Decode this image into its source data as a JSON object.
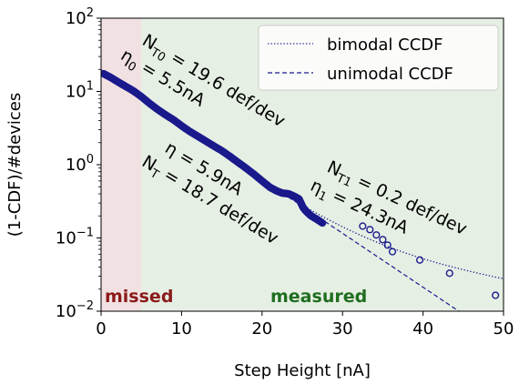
{
  "chart_data": {
    "type": "scatter",
    "xlabel": "Step Height  [nA]",
    "ylabel": "(1-CDF)/#devices",
    "xlim": [
      0,
      50
    ],
    "ylim": [
      0.01,
      100
    ],
    "yscale": "log",
    "x_ticks": [
      "0",
      "10",
      "20",
      "30",
      "40",
      "50"
    ],
    "y_ticks": [
      {
        "value": 100,
        "base": "10",
        "exp": "2"
      },
      {
        "value": 10,
        "base": "10",
        "exp": "1"
      },
      {
        "value": 1,
        "base": "10",
        "exp": "0"
      },
      {
        "value": 0.1,
        "base": "10",
        "exp": "−1"
      },
      {
        "value": 0.01,
        "base": "10",
        "exp": "−2"
      }
    ],
    "legend_position": "top-right",
    "legend": [
      {
        "label": "bimodal CCDF",
        "style": "dotted"
      },
      {
        "label": "unimodal CCDF",
        "style": "dashed"
      }
    ],
    "regions": [
      {
        "label": "missed",
        "x_range": [
          0,
          5
        ],
        "fill": "#f1e1e2",
        "text_color": "#8b1a1a"
      },
      {
        "label": "measured",
        "x_range": [
          5,
          50
        ],
        "fill": "#e6efe4",
        "text_color": "#1f6e1f"
      }
    ],
    "colors": {
      "data": "#1a1a8c",
      "bimodal": "#1a1a8c",
      "unimodal": "#1a1a8c"
    },
    "annotations": {
      "unimodal": {
        "n_base": "N",
        "n_sub": "T",
        "n_value": " = 18.7 def/dev",
        "eta_base": "η",
        "eta_value": " = 5.9nA"
      },
      "mode0": {
        "n_base": "N",
        "n_sub": "T0",
        "n_value": " = 19.6 def/dev",
        "eta_base": "η",
        "eta_sub": "0",
        "eta_value": " = 5.5nA"
      },
      "mode1": {
        "n_base": "N",
        "n_sub": "T1",
        "n_value": " = 0.2 def/dev",
        "eta_base": "η",
        "eta_sub": "1",
        "eta_value": " = 24.3nA"
      }
    },
    "model_params": {
      "unimodal": {
        "N": 18.7,
        "eta": 5.9
      },
      "bimodal": [
        {
          "N": 19.6,
          "eta": 5.5
        },
        {
          "N": 0.2,
          "eta": 24.3
        }
      ]
    },
    "scatter_points": [
      [
        0.3,
        17.5
      ],
      [
        1.2,
        15.5
      ],
      [
        2.1,
        13.5
      ],
      [
        3.0,
        11.8
      ],
      [
        4.0,
        10.2
      ],
      [
        5.0,
        8.5
      ],
      [
        6.0,
        6.9
      ],
      [
        7.0,
        5.7
      ],
      [
        8.0,
        4.8
      ],
      [
        9.0,
        4.1
      ],
      [
        10.0,
        3.4
      ],
      [
        11.0,
        2.85
      ],
      [
        12.0,
        2.45
      ],
      [
        13.0,
        2.1
      ],
      [
        14.0,
        1.8
      ],
      [
        15.0,
        1.55
      ],
      [
        16.0,
        1.3
      ],
      [
        17.0,
        1.08
      ],
      [
        18.0,
        0.9
      ],
      [
        19.0,
        0.74
      ],
      [
        20.0,
        0.6
      ],
      [
        21.0,
        0.49
      ],
      [
        21.8,
        0.44
      ],
      [
        22.5,
        0.41
      ],
      [
        23.3,
        0.4
      ],
      [
        24.0,
        0.37
      ],
      [
        24.6,
        0.34
      ],
      [
        25.1,
        0.26
      ],
      [
        25.5,
        0.23
      ],
      [
        26.1,
        0.2
      ],
      [
        26.8,
        0.18
      ],
      [
        27.5,
        0.16
      ],
      [
        32.5,
        0.145
      ],
      [
        33.4,
        0.13
      ],
      [
        34.2,
        0.11
      ],
      [
        35.0,
        0.095
      ],
      [
        35.6,
        0.08
      ],
      [
        36.2,
        0.065
      ],
      [
        39.6,
        0.05
      ],
      [
        43.3,
        0.033
      ],
      [
        49.0,
        0.0165
      ]
    ]
  }
}
